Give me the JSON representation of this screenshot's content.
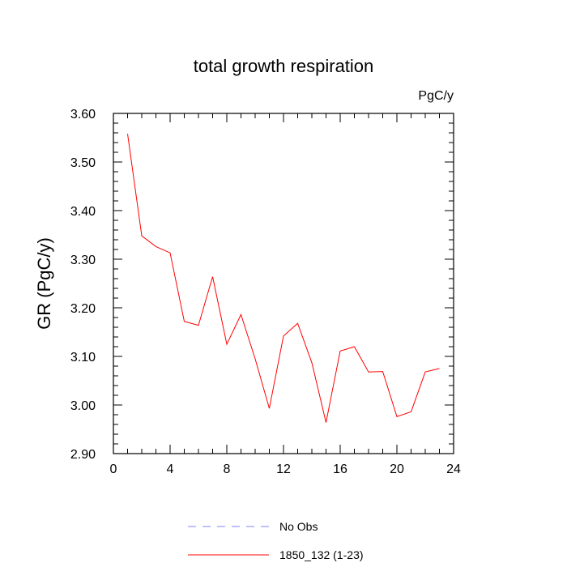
{
  "chart_data": {
    "type": "line",
    "title": "total growth respiration",
    "units": "PgC/y",
    "ylabel": "GR  (PgC/y)",
    "xlabel": "",
    "xlim": [
      0,
      24
    ],
    "ylim": [
      2.9,
      3.6
    ],
    "xticks": [
      0,
      4,
      8,
      12,
      16,
      20,
      24
    ],
    "yticks": [
      2.9,
      3.0,
      3.1,
      3.2,
      3.3,
      3.4,
      3.5,
      3.6
    ],
    "ytick_labels": [
      "2.90",
      "3.00",
      "3.10",
      "3.20",
      "3.30",
      "3.40",
      "3.50",
      "3.60"
    ],
    "grid": false,
    "legend_placement": "bottom",
    "series": [
      {
        "name": "1850_132 (1-23)",
        "color": "#ff0000",
        "style": "solid",
        "x": [
          1,
          2,
          3,
          4,
          5,
          6,
          7,
          8,
          9,
          10,
          11,
          12,
          13,
          14,
          15,
          16,
          17,
          18,
          19,
          20,
          21,
          22,
          23
        ],
        "y": [
          3.558,
          3.348,
          3.326,
          3.313,
          3.172,
          3.164,
          3.264,
          3.125,
          3.186,
          3.095,
          2.993,
          3.142,
          3.168,
          3.087,
          2.964,
          3.111,
          3.12,
          3.068,
          3.069,
          2.976,
          2.986,
          3.068,
          3.075
        ]
      },
      {
        "name": "No Obs",
        "color": "#8080ff",
        "style": "dashed",
        "x": [],
        "y": []
      }
    ]
  }
}
